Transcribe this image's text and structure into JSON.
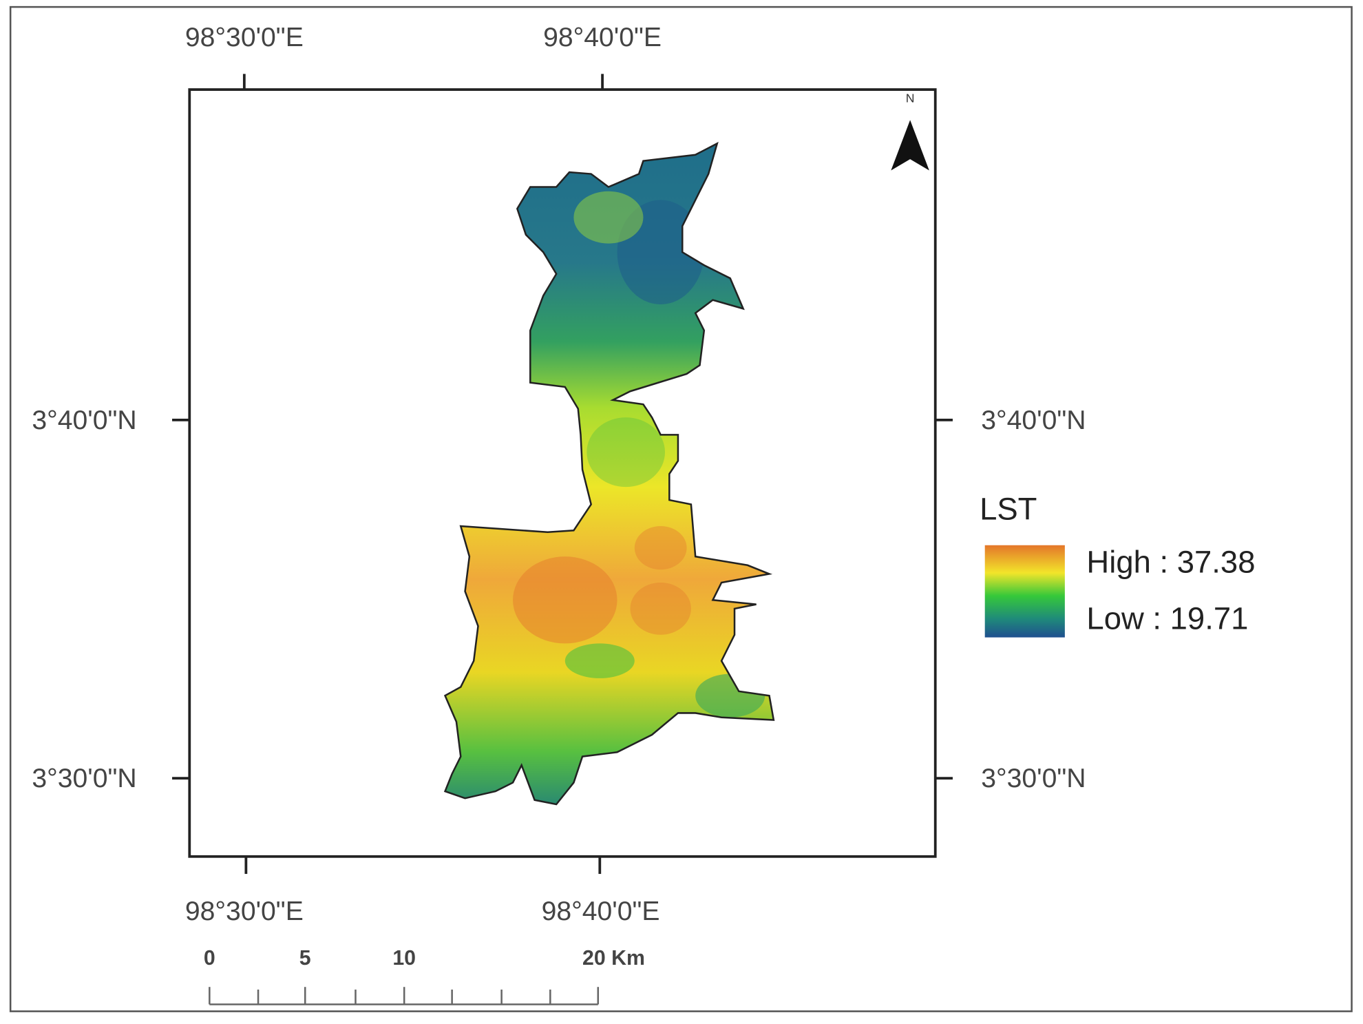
{
  "map": {
    "graticule": {
      "top": [
        "98°30'0\"E",
        "98°40'0\"E"
      ],
      "bottom": [
        "98°30'0\"E",
        "98°40'0\"E"
      ],
      "left": [
        "3°40'0\"N",
        "3°30'0\"N"
      ],
      "right": [
        "3°40'0\"N",
        "3°30'0\"N"
      ]
    },
    "north_arrow": "N",
    "legend": {
      "title": "LST",
      "high": "High : 37.38",
      "low": "Low : 19.71"
    },
    "scale_bar": {
      "labels": [
        "0",
        "5",
        "10",
        "20 Km"
      ]
    }
  }
}
